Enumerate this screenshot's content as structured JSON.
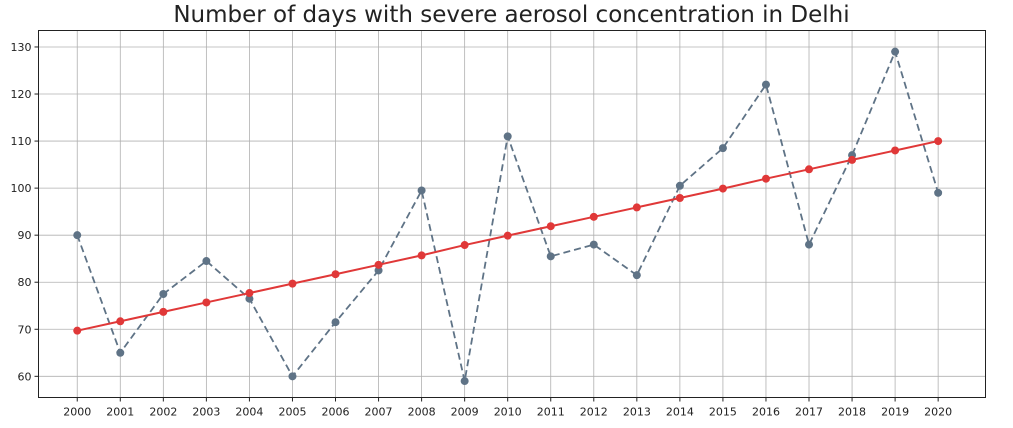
{
  "chart_data": {
    "type": "line",
    "title": "Number of days with severe aerosol concentration in Delhi",
    "xlabel": "",
    "ylabel": "",
    "x": [
      2000,
      2001,
      2002,
      2003,
      2004,
      2005,
      2006,
      2007,
      2008,
      2009,
      2010,
      2011,
      2012,
      2013,
      2014,
      2015,
      2016,
      2017,
      2018,
      2019,
      2020
    ],
    "x_tick_labels": [
      "2000",
      "2001",
      "2002",
      "2003",
      "2004",
      "2005",
      "2006",
      "2007",
      "2008",
      "2009",
      "2010",
      "2011",
      "2012",
      "2013",
      "2014",
      "2015",
      "2016",
      "2017",
      "2018",
      "2019",
      "2020"
    ],
    "xlim": [
      1999.1,
      2021.1
    ],
    "ylim": [
      55.5,
      133.5
    ],
    "y_ticks": [
      60,
      70,
      80,
      90,
      100,
      110,
      120,
      130
    ],
    "grid": true,
    "series": [
      {
        "style": "dashed-markers",
        "color": "#5f7386",
        "values": [
          90,
          65,
          77.5,
          84.5,
          76.5,
          60,
          71.5,
          82.5,
          99.5,
          59,
          111,
          85.5,
          88,
          81.5,
          100.5,
          108.5,
          122,
          88,
          107,
          129,
          99
        ]
      },
      {
        "style": "solid-markers",
        "color": "#e03838",
        "values": [
          69.7,
          71.7,
          73.7,
          75.7,
          77.7,
          79.7,
          81.7,
          83.7,
          85.7,
          87.9,
          89.9,
          91.9,
          93.9,
          95.9,
          97.9,
          99.9,
          102,
          104,
          106,
          108,
          110
        ]
      }
    ]
  }
}
